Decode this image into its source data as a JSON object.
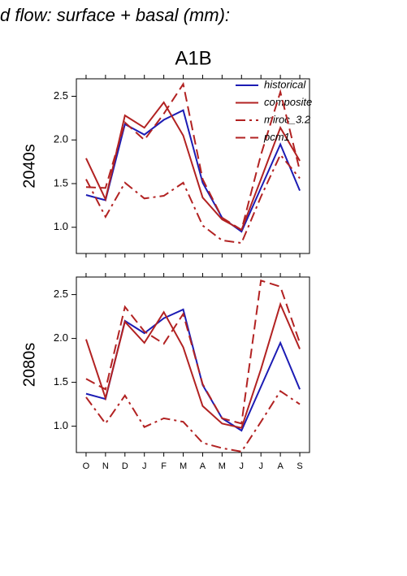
{
  "chart_data": [
    {
      "type": "line",
      "title": "d flow: surface + basal (mm):",
      "subtitle": "A1B",
      "ylabel": "2040s",
      "ylim": [
        0.7,
        2.7
      ],
      "yticks": [
        {
          "value": 1,
          "label": "1.0"
        },
        1.5,
        {
          "value": 2,
          "label": "2.0"
        },
        2.5
      ],
      "legend": "upper right",
      "series": [
        {
          "name": "historical",
          "color": "#1c1cb4",
          "style": "solid",
          "values": [
            1.37,
            1.31,
            2.18,
            2.06,
            2.23,
            2.34,
            1.51,
            1.11,
            0.95,
            1.45,
            1.95,
            1.42
          ]
        },
        {
          "name": "composite",
          "color": "#b22222",
          "style": "solid",
          "values": [
            1.79,
            1.32,
            2.28,
            2.14,
            2.43,
            2.05,
            1.34,
            1.09,
            0.97,
            1.55,
            2.14,
            1.76
          ]
        },
        {
          "name": "miroc_3.2",
          "color": "#b22222",
          "style": "dashdot",
          "values": [
            1.55,
            1.12,
            1.51,
            1.33,
            1.36,
            1.51,
            1.02,
            0.85,
            0.82,
            1.35,
            1.83,
            1.56
          ]
        },
        {
          "name": "pcm1",
          "color": "#b22222",
          "style": "dashed",
          "values": [
            1.46,
            1.45,
            2.2,
            2.0,
            2.3,
            2.64,
            1.55,
            1.11,
            0.97,
            1.83,
            2.55,
            1.65
          ]
        }
      ]
    },
    {
      "type": "line",
      "ylabel": "2080s",
      "categories": [
        "O",
        "N",
        "D",
        "J",
        "F",
        "M",
        "A",
        "M",
        "J",
        "J",
        "A",
        "S"
      ],
      "ylim": [
        0.7,
        2.7
      ],
      "yticks": [
        {
          "value": 1,
          "label": "1.0"
        },
        1.5,
        {
          "value": 2,
          "label": "2.0"
        },
        2.5
      ],
      "series": [
        {
          "name": "historical",
          "color": "#1c1cb4",
          "style": "solid",
          "values": [
            1.37,
            1.31,
            2.2,
            2.06,
            2.23,
            2.33,
            1.47,
            1.09,
            0.95,
            1.45,
            1.95,
            1.42
          ]
        },
        {
          "name": "composite",
          "color": "#b22222",
          "style": "solid",
          "values": [
            1.99,
            1.32,
            2.19,
            1.95,
            2.3,
            1.9,
            1.23,
            1.03,
            0.98,
            1.65,
            2.39,
            1.88
          ]
        },
        {
          "name": "miroc_3.2",
          "color": "#b22222",
          "style": "dashdot",
          "values": [
            1.33,
            1.03,
            1.35,
            0.99,
            1.09,
            1.05,
            0.81,
            0.75,
            0.71,
            1.05,
            1.4,
            1.25
          ]
        },
        {
          "name": "pcm1",
          "color": "#b22222",
          "style": "dashed",
          "values": [
            1.54,
            1.42,
            2.36,
            2.08,
            1.94,
            2.28,
            1.48,
            1.09,
            1.03,
            2.66,
            2.59,
            1.95
          ]
        }
      ]
    }
  ]
}
